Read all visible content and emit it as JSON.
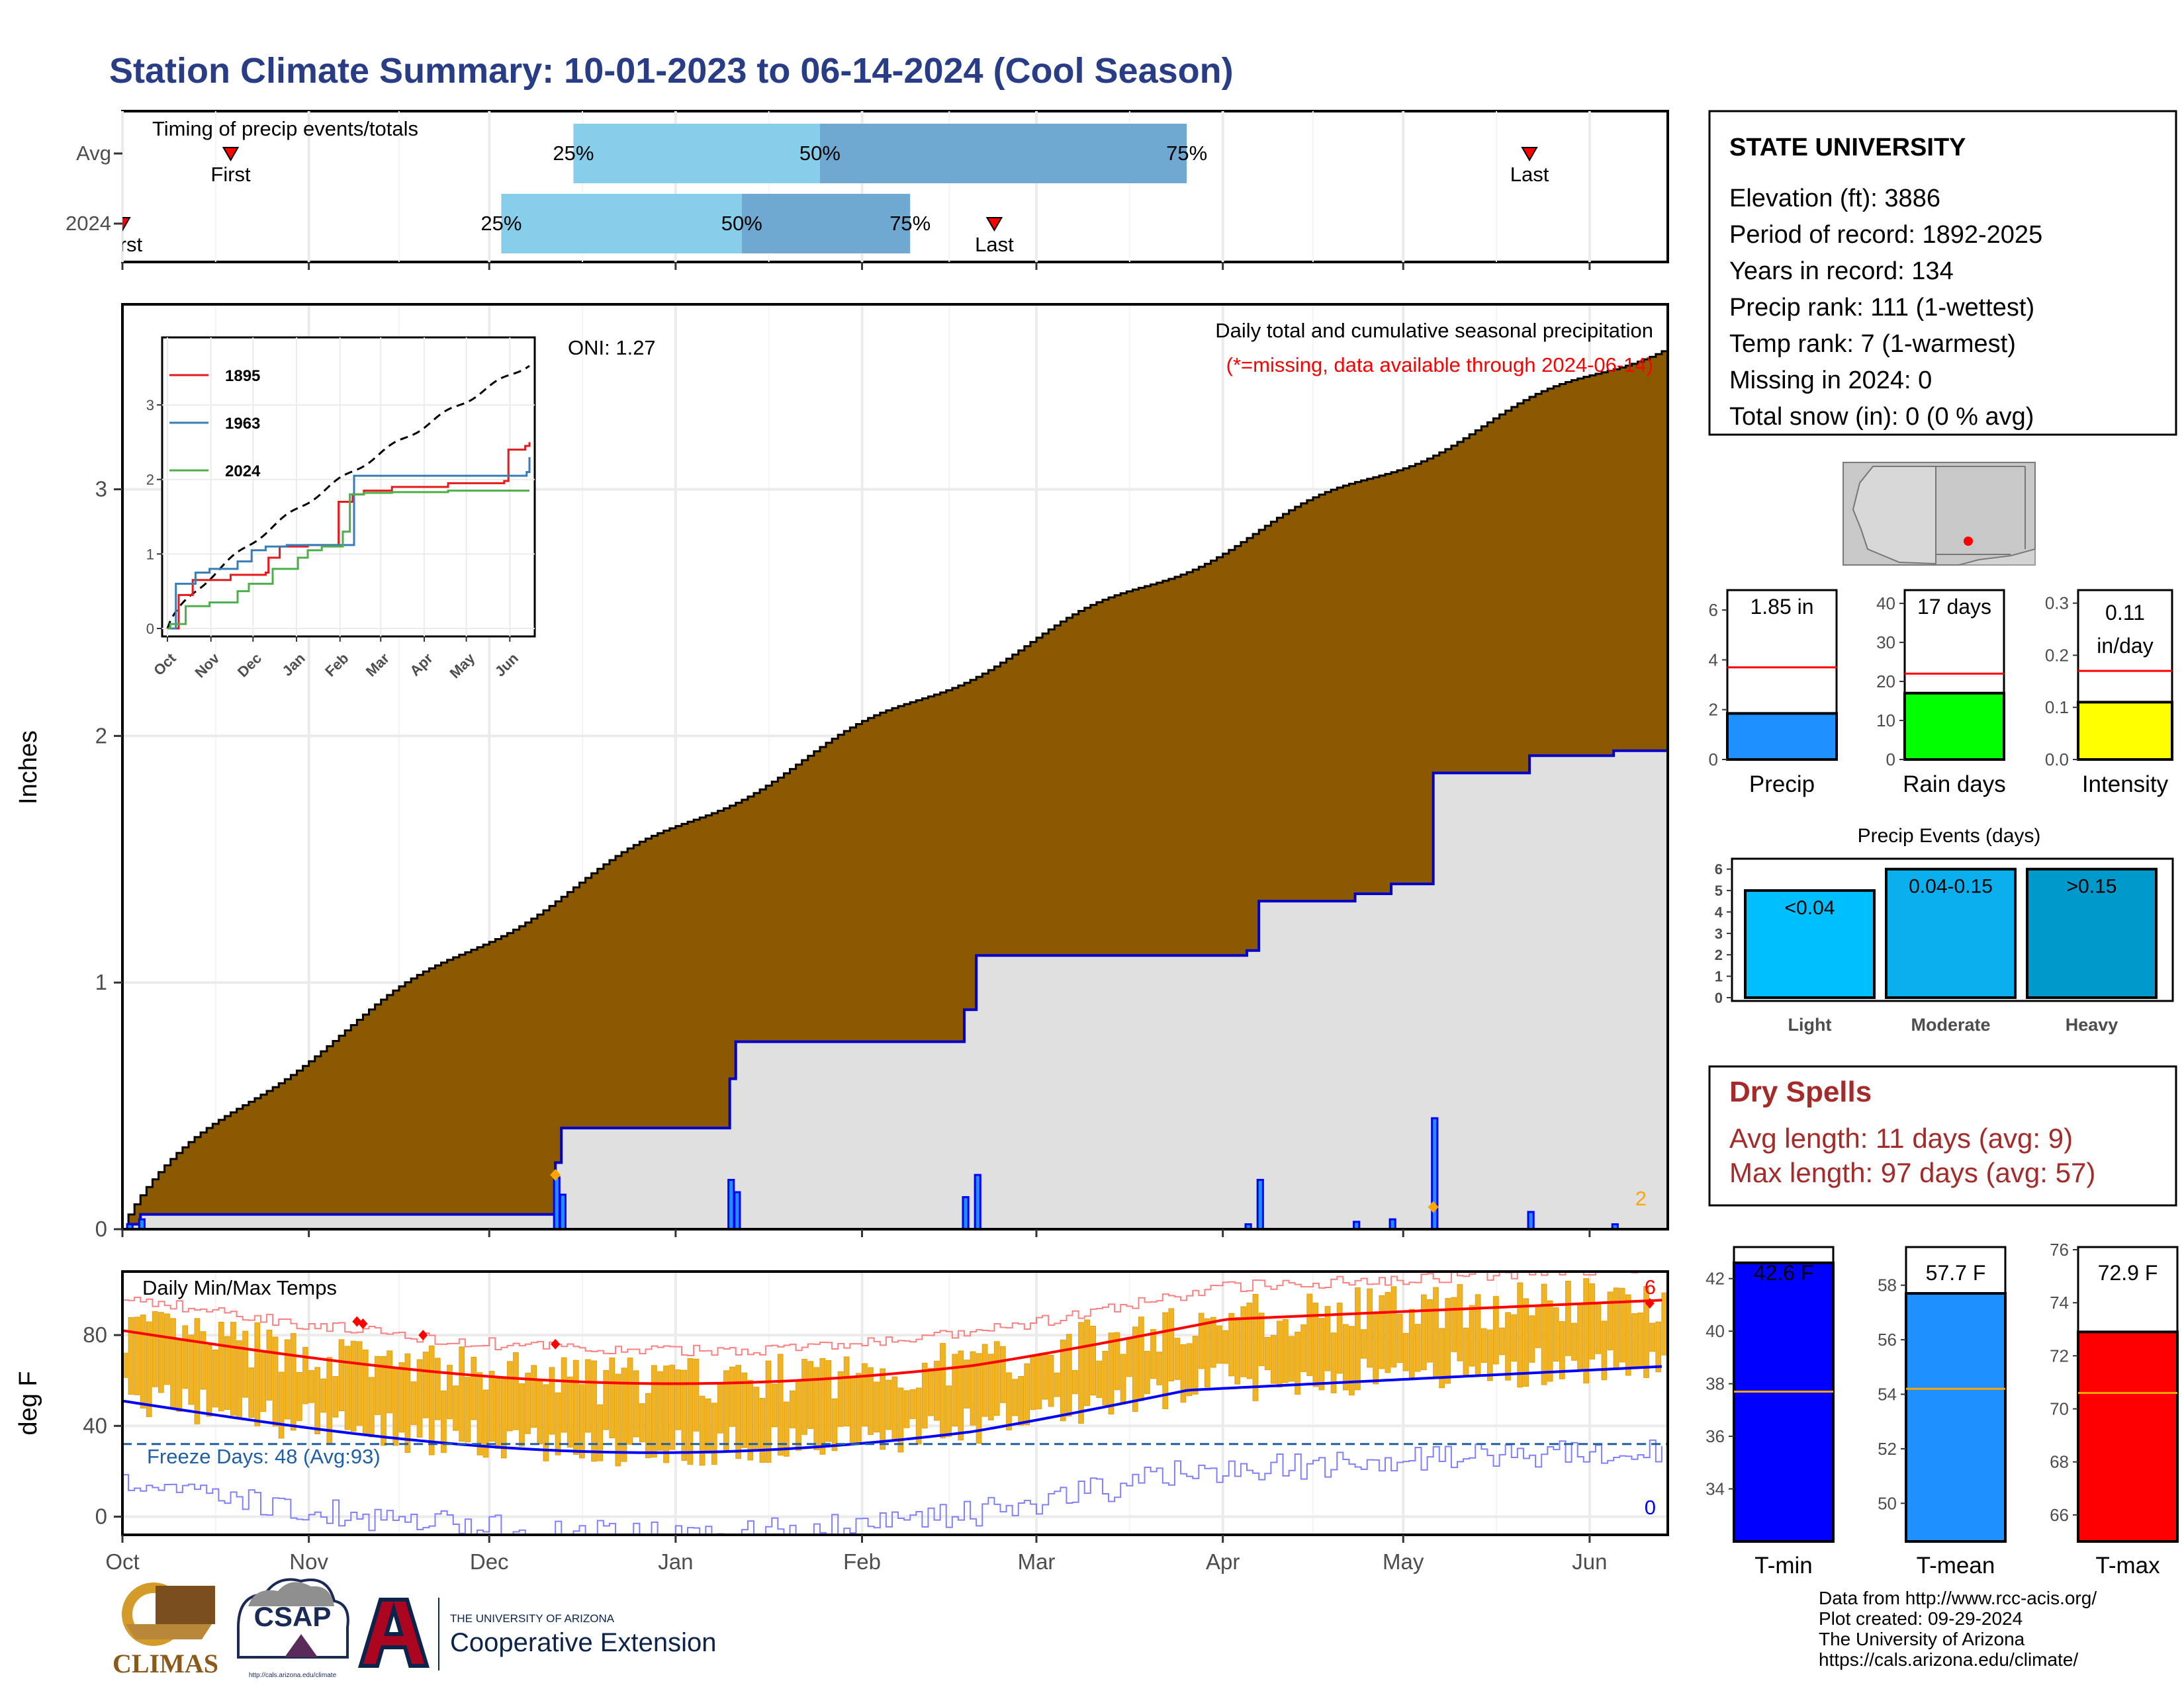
{
  "title": "Station Climate Summary: 10-01-2023 to 06-14-2024 (Cool Season)",
  "months": [
    "Oct",
    "Nov",
    "Dec",
    "Jan",
    "Feb",
    "Mar",
    "Apr",
    "May",
    "Jun"
  ],
  "timing": {
    "title": "Timing of precip events/totals",
    "rows": [
      {
        "label": "Avg",
        "first": "First",
        "last": "Last",
        "p25": "25%",
        "p50": "50%",
        "p75": "75%"
      },
      {
        "label": "2024",
        "first": "First",
        "last": "Last",
        "p25": "25%",
        "p50": "50%",
        "p75": "75%"
      }
    ]
  },
  "precip": {
    "ylabel": "Inches",
    "yticks": [
      "0",
      "1",
      "2",
      "3"
    ],
    "oni": "ONI: 1.27",
    "note1": "Daily total and cumulative seasonal precipitation",
    "note2": "(*=missing, data available through 2024-06-14)",
    "count": "2"
  },
  "inset": {
    "series": [
      {
        "name": "1895",
        "color": "#e41a1c"
      },
      {
        "name": "1963",
        "color": "#377eb8"
      },
      {
        "name": "2024",
        "color": "#4daf4a"
      }
    ],
    "yticks": [
      "0",
      "1",
      "2",
      "3"
    ],
    "months": [
      "Oct",
      "Nov",
      "Dec",
      "Jan",
      "Feb",
      "Mar",
      "Apr",
      "May",
      "Jun"
    ]
  },
  "temps": {
    "ylabel": "deg F",
    "title": "Daily Min/Max Temps",
    "yticks": [
      "0",
      "40",
      "80"
    ],
    "freeze": "Freeze Days: 48 (Avg:93)",
    "count_hi": "6",
    "count_lo": "0"
  },
  "station": {
    "name": "STATE UNIVERSITY",
    "lines": [
      "Elevation (ft): 3886",
      "Period of record: 1892-2025",
      "Years in record: 134",
      "Precip rank: 111 (1-wettest)",
      "Temp rank: 7 (1-warmest)",
      "Missing in 2024: 0",
      "Total snow (in): 0 (0 % avg)"
    ]
  },
  "mini": {
    "precip": {
      "label": "Precip",
      "value_text": "1.85 in",
      "value": 1.85,
      "avg": 3.7,
      "color": "#1e90ff",
      "yticks": [
        "0",
        "2",
        "4",
        "6"
      ]
    },
    "rain": {
      "label": "Rain days",
      "value_text": "17 days",
      "value": 17,
      "avg": 22,
      "color": "#00ff00",
      "yticks": [
        "0",
        "10",
        "20",
        "30",
        "40"
      ]
    },
    "intensity": {
      "label": "Intensity",
      "value_text1": "0.11",
      "value_text2": "in/day",
      "value": 0.11,
      "avg": 0.17,
      "color": "#ffff00",
      "yticks": [
        "0.0",
        "0.1",
        "0.2",
        "0.3"
      ]
    }
  },
  "events": {
    "title": "Precip Events (days)",
    "yticks": [
      "0",
      "1",
      "2",
      "3",
      "4",
      "5",
      "6"
    ],
    "bars": [
      {
        "cat": "Light",
        "label": "<0.04",
        "value": 5
      },
      {
        "cat": "Moderate",
        "label": "0.04-0.15",
        "value": 6
      },
      {
        "cat": "Heavy",
        "label": ">0.15",
        "value": 6
      }
    ]
  },
  "dry": {
    "title": "Dry Spells",
    "avg": "Avg length: 11 days (avg: 9)",
    "max": "Max length: 97 days (avg: 57)"
  },
  "tbars": [
    {
      "label": "T-min",
      "value_text": "42.6 F",
      "value": 42.6,
      "avg": 37.7,
      "ymin": 32,
      "ymax": 43.2,
      "ticks": [
        "34",
        "36",
        "38",
        "40",
        "42"
      ],
      "tickvals": [
        34,
        36,
        38,
        40,
        42
      ],
      "color": "#0000ff"
    },
    {
      "label": "T-mean",
      "value_text": "57.7 F",
      "value": 57.7,
      "avg": 54.2,
      "ymin": 48.6,
      "ymax": 59.4,
      "ticks": [
        "50",
        "52",
        "54",
        "56",
        "58"
      ],
      "tickvals": [
        50,
        52,
        54,
        56,
        58
      ],
      "color": "#1e90ff"
    },
    {
      "label": "T-max",
      "value_text": "72.9 F",
      "value": 72.9,
      "avg": 70.6,
      "ymin": 65,
      "ymax": 76.1,
      "ticks": [
        "66",
        "68",
        "70",
        "72",
        "74",
        "76"
      ],
      "tickvals": [
        66,
        68,
        70,
        72,
        74,
        76
      ],
      "color": "#ff0000"
    }
  ],
  "footer": {
    "lines": [
      "Data from http://www.rcc-acis.org/",
      "Plot created: 09-29-2024",
      "The University of Arizona",
      "https://cals.arizona.edu/climate/"
    ],
    "logo1": "CLIMAS",
    "logo2": "CSAP",
    "logo2_url": "http://cals.arizona.edu/climate",
    "logo3_a": "THE UNIVERSITY OF ARIZONA",
    "logo3_b": "Cooperative Extension"
  }
}
